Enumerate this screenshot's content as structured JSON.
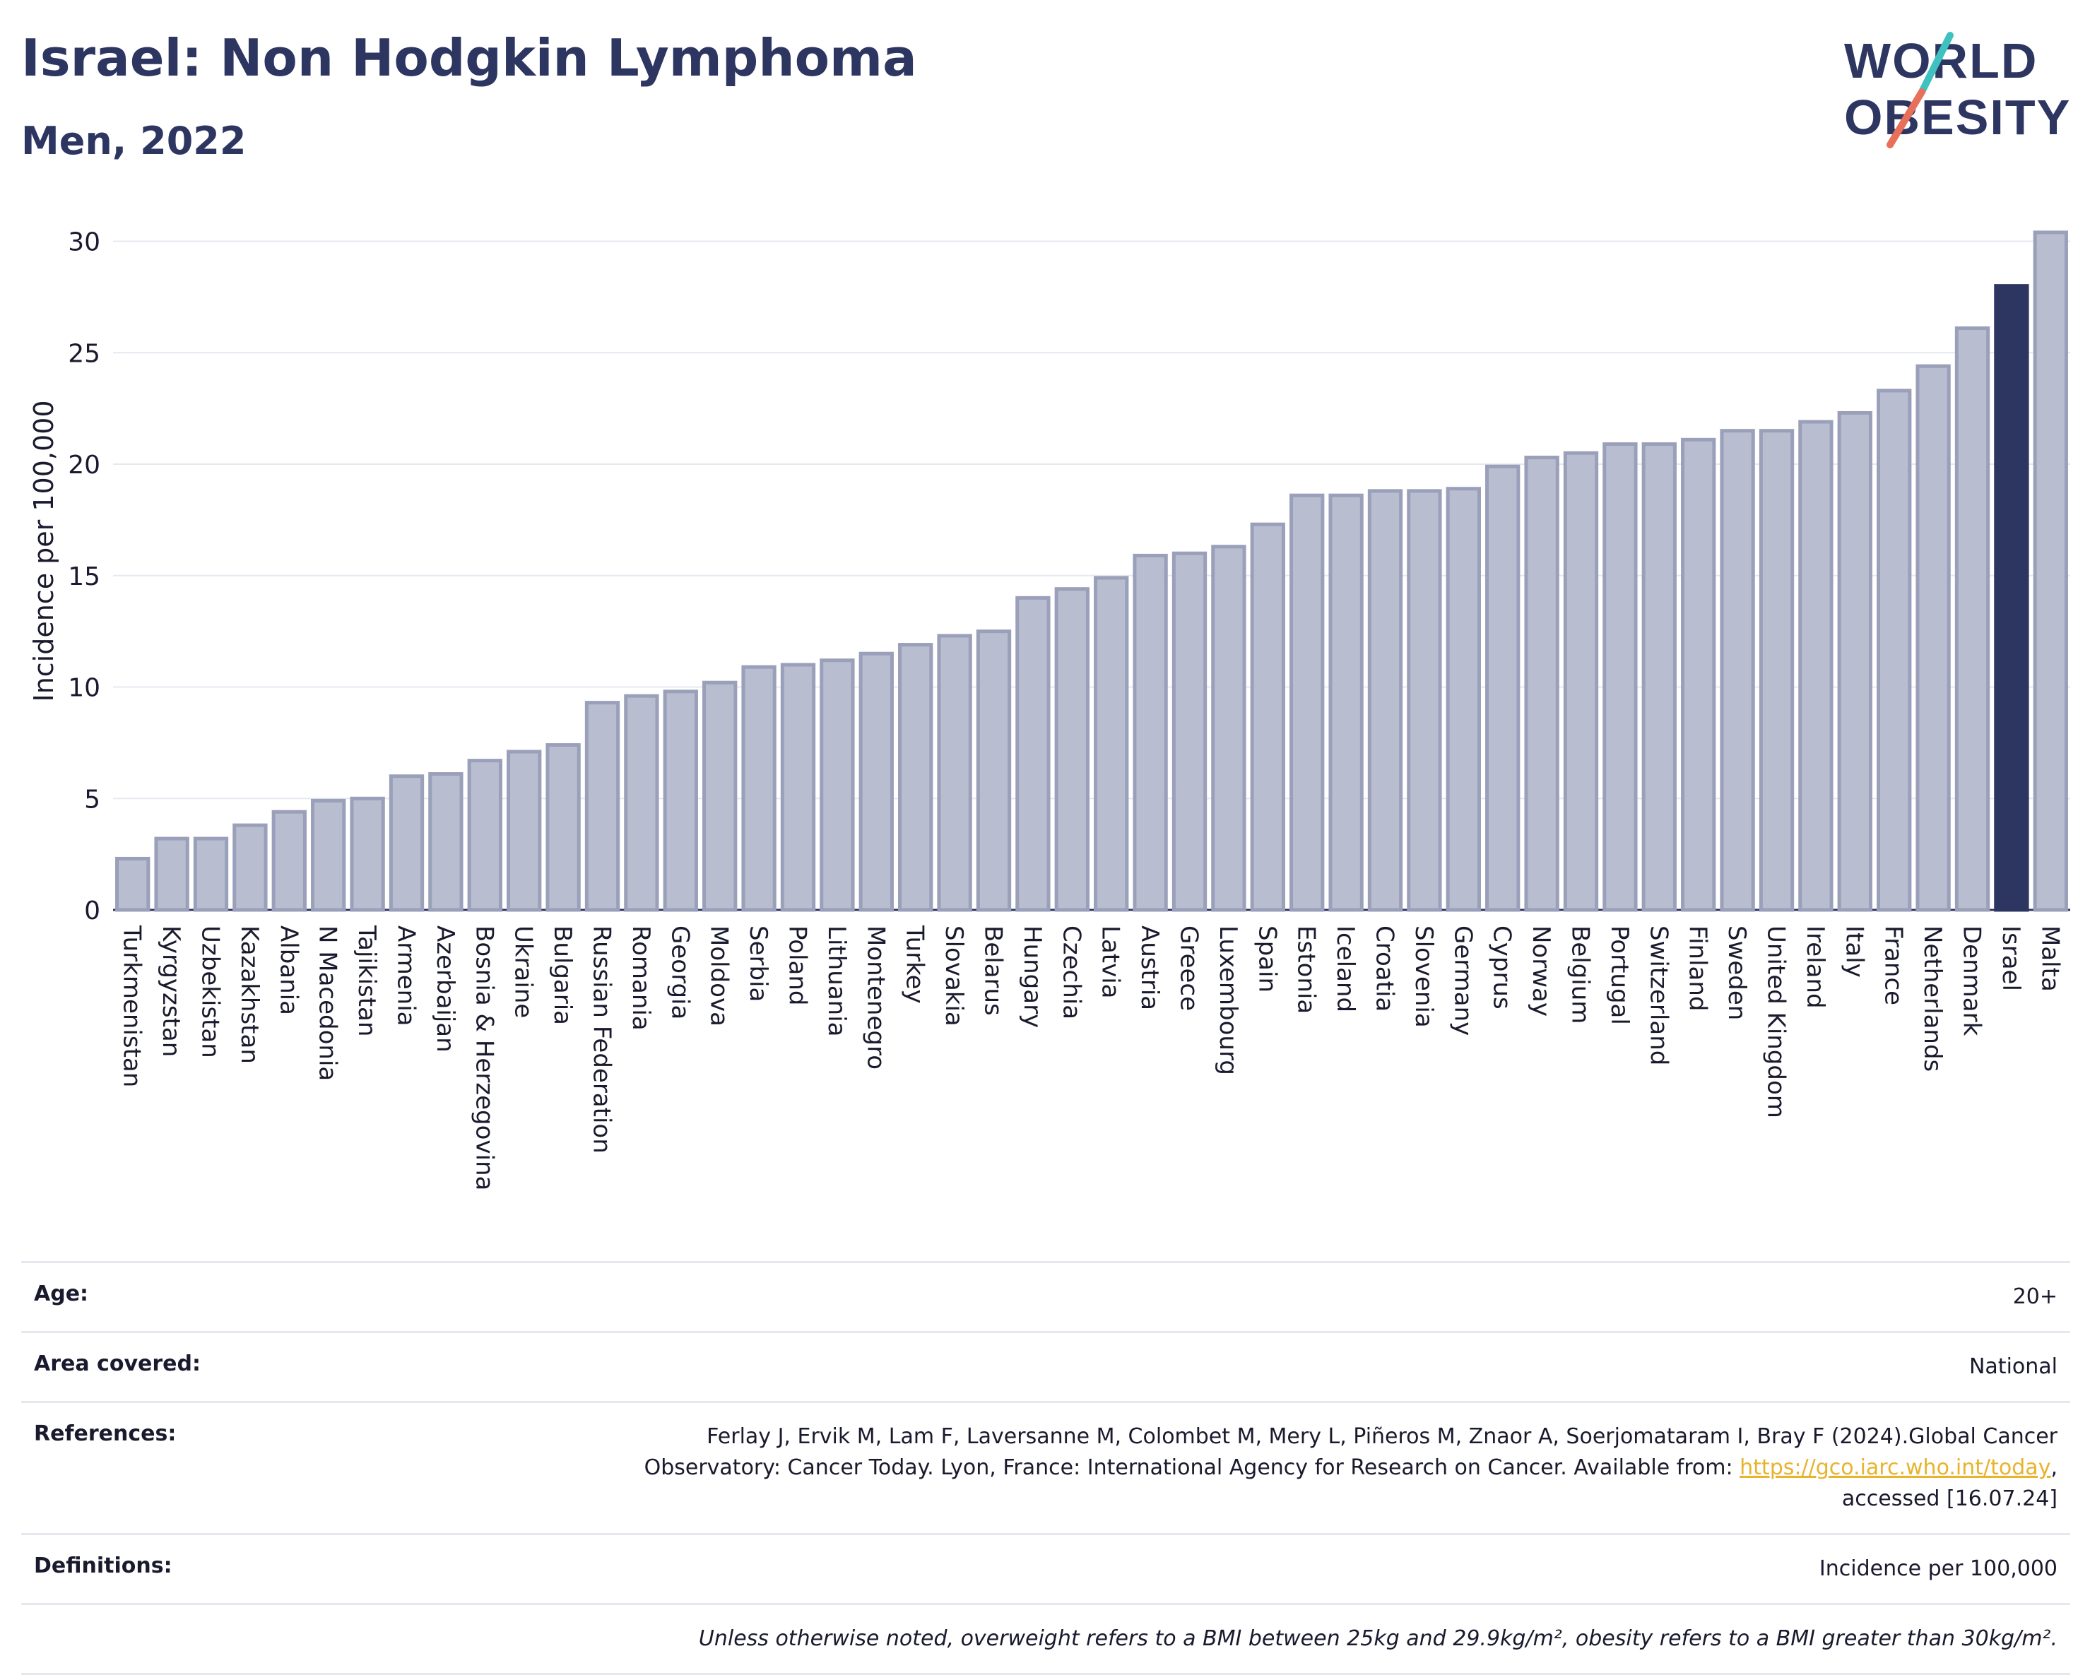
{
  "header": {
    "title": "Israel: Non Hodgkin Lymphoma",
    "subtitle": "Men, 2022"
  },
  "logo": {
    "line1": "WORLD",
    "line2": "OBESITY"
  },
  "colors": {
    "bar": "#b9bdd0",
    "bar_edge": "#9a9fba",
    "highlight": "#2d3561",
    "text": "#2d3561",
    "grid": "#e6e8f0"
  },
  "chart_data": {
    "type": "bar",
    "ylabel": "Incidence per 100,000",
    "ylim": [
      0,
      31
    ],
    "yticks": [
      0,
      5,
      10,
      15,
      20,
      25,
      30
    ],
    "grid": true,
    "highlight": "Israel",
    "categories": [
      "Turkmenistan",
      "Kyrgyzstan",
      "Uzbekistan",
      "Kazakhstan",
      "Albania",
      "N Macedonia",
      "Tajikistan",
      "Armenia",
      "Azerbaijan",
      "Bosnia & Herzegovina",
      "Ukraine",
      "Bulgaria",
      "Russian Federation",
      "Romania",
      "Georgia",
      "Moldova",
      "Serbia",
      "Poland",
      "Lithuania",
      "Montenegro",
      "Turkey",
      "Slovakia",
      "Belarus",
      "Hungary",
      "Czechia",
      "Latvia",
      "Austria",
      "Greece",
      "Luxembourg",
      "Spain",
      "Estonia",
      "Iceland",
      "Croatia",
      "Slovenia",
      "Germany",
      "Cyprus",
      "Norway",
      "Belgium",
      "Portugal",
      "Switzerland",
      "Finland",
      "Sweden",
      "United Kingdom",
      "Ireland",
      "Italy",
      "France",
      "Netherlands",
      "Denmark",
      "Israel",
      "Malta"
    ],
    "values": [
      2.3,
      3.2,
      3.2,
      3.8,
      4.4,
      4.9,
      5.0,
      6.0,
      6.1,
      6.7,
      7.1,
      7.4,
      9.3,
      9.6,
      9.8,
      10.2,
      10.9,
      11.0,
      11.2,
      11.5,
      11.9,
      12.3,
      12.5,
      14.0,
      14.4,
      14.9,
      15.9,
      16.0,
      16.3,
      17.3,
      18.6,
      18.6,
      18.8,
      18.8,
      18.9,
      19.9,
      20.3,
      20.5,
      20.9,
      20.9,
      21.1,
      21.5,
      21.5,
      21.9,
      22.3,
      23.3,
      24.4,
      26.1,
      28.0,
      30.4
    ]
  },
  "info": {
    "age_label": "Age:",
    "age_value": "20+",
    "area_label": "Area covered:",
    "area_value": "National",
    "references_label": "References:",
    "references_line1": "Ferlay J, Ervik M, Lam F, Laversanne M, Colombet M, Mery L, Piñeros M, Znaor A, Soerjomataram I, Bray F (2024).Global Cancer",
    "references_line2": "Observatory: Cancer Today. Lyon, France: International Agency for Research on Cancer. Available from: ",
    "references_link": "https://gco.iarc.who.int/today",
    "references_line2_end": ",",
    "references_line3": "accessed [16.07.24]",
    "definitions_label": "Definitions:",
    "definitions_value": "Incidence per 100,000",
    "note": "Unless otherwise noted, overweight refers to a BMI between 25kg and 29.9kg/m², obesity refers to a BMI greater than 30kg/m²."
  }
}
